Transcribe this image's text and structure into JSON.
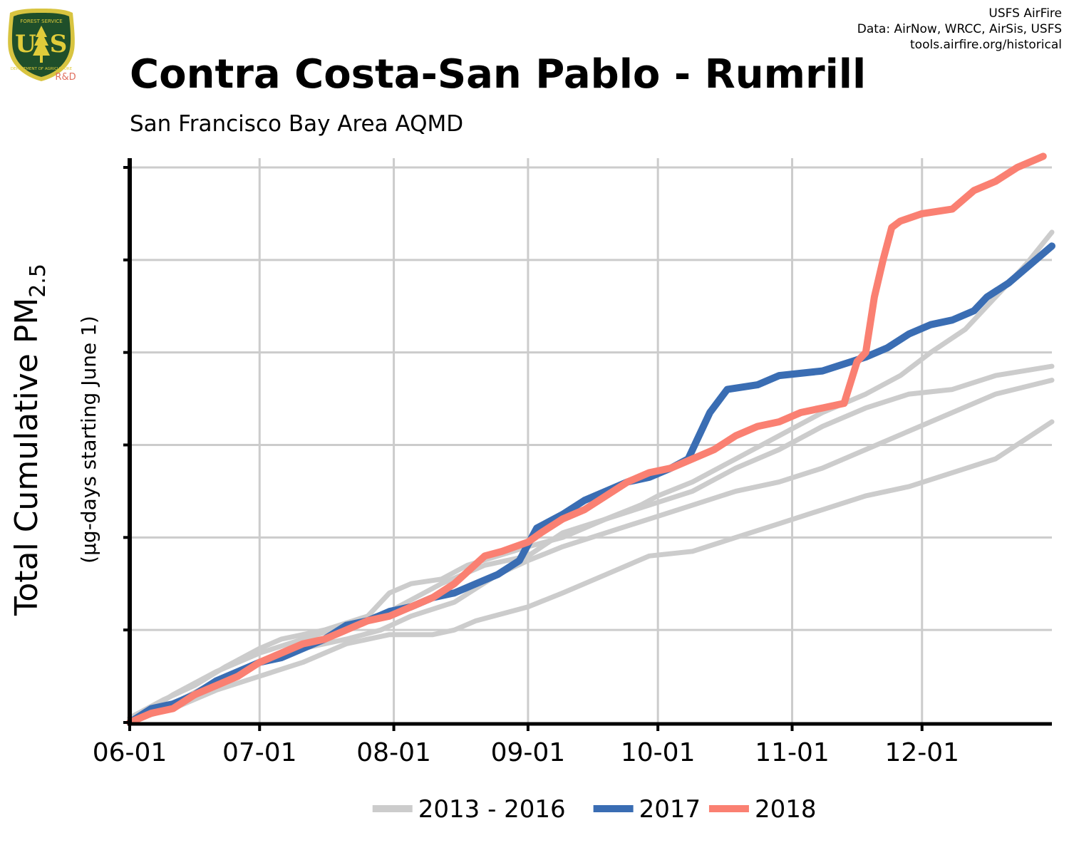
{
  "logo": {
    "top_text": "FOREST SERVICE",
    "letters": "US",
    "bottom_text": "DEPARTMENT OF AGRICULTURE",
    "tag": "R&D",
    "colors": {
      "shield": "#1f4f2a",
      "rim": "#d8c440",
      "letters": "#e0cc3a",
      "tag": "#e07060"
    }
  },
  "credits": {
    "line1": "USFS AirFire",
    "line2": "Data: AirNow, WRCC, AirSis, USFS",
    "line3": "tools.airfire.org/historical"
  },
  "title": "Contra Costa-San Pablo - Rumrill",
  "subtitle": "San Francisco Bay Area AQMD",
  "chart_data": {
    "type": "line",
    "title": "Contra Costa-San Pablo - Rumrill",
    "subtitle": "San Francisco Bay Area AQMD",
    "ylabel": "Total Cumulative PM",
    "ylabel_subscript": "2.5",
    "ylabel2": "(µg-days starting June 1)",
    "xlabel": "",
    "x_unit": "day of season (June 1 = 0)",
    "xlim": [
      0,
      213
    ],
    "ylim": [
      0,
      6.1
    ],
    "y_ticks": [
      0,
      1,
      2,
      3,
      4,
      5,
      6
    ],
    "y_tick_labels_shown": false,
    "x_ticks": [
      {
        "x": 0,
        "label": "06-01"
      },
      {
        "x": 30,
        "label": "07-01"
      },
      {
        "x": 61,
        "label": "08-01"
      },
      {
        "x": 92,
        "label": "09-01"
      },
      {
        "x": 122,
        "label": "10-01"
      },
      {
        "x": 153,
        "label": "11-01"
      },
      {
        "x": 183,
        "label": "12-01"
      }
    ],
    "grid": true,
    "legend_position": "bottom-center",
    "legend": [
      {
        "label": "2013 - 2016",
        "color": "#cccccc"
      },
      {
        "label": "2017",
        "color": "#3a6db3"
      },
      {
        "label": "2018",
        "color": "#fa8072"
      }
    ],
    "series": [
      {
        "group": "2013 - 2016",
        "color": "#cccccc",
        "points": [
          [
            0,
            0.05
          ],
          [
            8,
            0.25
          ],
          [
            15,
            0.4
          ],
          [
            22,
            0.6
          ],
          [
            30,
            0.8
          ],
          [
            35,
            0.9
          ],
          [
            45,
            1.0
          ],
          [
            55,
            1.15
          ],
          [
            60,
            1.4
          ],
          [
            65,
            1.5
          ],
          [
            72,
            1.55
          ],
          [
            78,
            1.7
          ],
          [
            85,
            1.8
          ],
          [
            92,
            1.9
          ],
          [
            100,
            2.0
          ],
          [
            110,
            2.2
          ],
          [
            118,
            2.35
          ],
          [
            122,
            2.45
          ],
          [
            130,
            2.6
          ],
          [
            140,
            2.85
          ],
          [
            150,
            3.1
          ],
          [
            160,
            3.35
          ],
          [
            170,
            3.55
          ],
          [
            178,
            3.75
          ],
          [
            185,
            4.0
          ],
          [
            193,
            4.25
          ],
          [
            200,
            4.6
          ],
          [
            207,
            4.95
          ],
          [
            213,
            5.3
          ]
        ]
      },
      {
        "group": "2013 - 2016",
        "color": "#cccccc",
        "points": [
          [
            0,
            0.02
          ],
          [
            10,
            0.15
          ],
          [
            20,
            0.35
          ],
          [
            30,
            0.5
          ],
          [
            40,
            0.65
          ],
          [
            50,
            0.85
          ],
          [
            60,
            0.95
          ],
          [
            70,
            0.95
          ],
          [
            75,
            1.0
          ],
          [
            80,
            1.1
          ],
          [
            92,
            1.25
          ],
          [
            100,
            1.4
          ],
          [
            110,
            1.6
          ],
          [
            120,
            1.8
          ],
          [
            130,
            1.85
          ],
          [
            140,
            2.0
          ],
          [
            150,
            2.15
          ],
          [
            160,
            2.3
          ],
          [
            170,
            2.45
          ],
          [
            180,
            2.55
          ],
          [
            190,
            2.7
          ],
          [
            200,
            2.85
          ],
          [
            213,
            3.25
          ]
        ]
      },
      {
        "group": "2013 - 2016",
        "color": "#cccccc",
        "points": [
          [
            0,
            0.0
          ],
          [
            10,
            0.2
          ],
          [
            20,
            0.45
          ],
          [
            30,
            0.65
          ],
          [
            40,
            0.8
          ],
          [
            50,
            0.9
          ],
          [
            58,
            1.0
          ],
          [
            65,
            1.15
          ],
          [
            75,
            1.3
          ],
          [
            85,
            1.6
          ],
          [
            92,
            1.75
          ],
          [
            100,
            1.9
          ],
          [
            110,
            2.05
          ],
          [
            120,
            2.2
          ],
          [
            130,
            2.35
          ],
          [
            140,
            2.5
          ],
          [
            150,
            2.6
          ],
          [
            160,
            2.75
          ],
          [
            170,
            2.95
          ],
          [
            180,
            3.15
          ],
          [
            190,
            3.35
          ],
          [
            200,
            3.55
          ],
          [
            213,
            3.7
          ]
        ]
      },
      {
        "group": "2013 - 2016",
        "color": "#cccccc",
        "points": [
          [
            0,
            0.0
          ],
          [
            10,
            0.3
          ],
          [
            20,
            0.55
          ],
          [
            30,
            0.75
          ],
          [
            40,
            0.9
          ],
          [
            50,
            1.05
          ],
          [
            60,
            1.2
          ],
          [
            72,
            1.5
          ],
          [
            82,
            1.7
          ],
          [
            92,
            1.8
          ],
          [
            100,
            2.05
          ],
          [
            110,
            2.2
          ],
          [
            120,
            2.35
          ],
          [
            130,
            2.5
          ],
          [
            140,
            2.75
          ],
          [
            150,
            2.95
          ],
          [
            160,
            3.2
          ],
          [
            170,
            3.4
          ],
          [
            180,
            3.55
          ],
          [
            190,
            3.6
          ],
          [
            200,
            3.75
          ],
          [
            213,
            3.85
          ]
        ]
      },
      {
        "group": "2017",
        "name": "2017",
        "color": "#3a6db3",
        "points": [
          [
            0,
            0.0
          ],
          [
            5,
            0.15
          ],
          [
            10,
            0.2
          ],
          [
            15,
            0.3
          ],
          [
            20,
            0.45
          ],
          [
            25,
            0.55
          ],
          [
            30,
            0.65
          ],
          [
            35,
            0.7
          ],
          [
            40,
            0.8
          ],
          [
            45,
            0.9
          ],
          [
            50,
            1.05
          ],
          [
            55,
            1.1
          ],
          [
            60,
            1.2
          ],
          [
            65,
            1.25
          ],
          [
            70,
            1.35
          ],
          [
            75,
            1.4
          ],
          [
            80,
            1.5
          ],
          [
            85,
            1.6
          ],
          [
            90,
            1.75
          ],
          [
            94,
            2.1
          ],
          [
            100,
            2.25
          ],
          [
            105,
            2.4
          ],
          [
            110,
            2.5
          ],
          [
            115,
            2.6
          ],
          [
            120,
            2.65
          ],
          [
            125,
            2.75
          ],
          [
            129,
            2.85
          ],
          [
            131,
            3.05
          ],
          [
            134,
            3.35
          ],
          [
            138,
            3.6
          ],
          [
            145,
            3.65
          ],
          [
            150,
            3.75
          ],
          [
            160,
            3.8
          ],
          [
            170,
            3.95
          ],
          [
            175,
            4.05
          ],
          [
            180,
            4.2
          ],
          [
            185,
            4.3
          ],
          [
            190,
            4.35
          ],
          [
            195,
            4.45
          ],
          [
            198,
            4.6
          ],
          [
            203,
            4.75
          ],
          [
            208,
            4.95
          ],
          [
            213,
            5.15
          ]
        ]
      },
      {
        "group": "2018",
        "name": "2018",
        "color": "#fa8072",
        "points": [
          [
            0,
            0.0
          ],
          [
            5,
            0.1
          ],
          [
            10,
            0.15
          ],
          [
            15,
            0.3
          ],
          [
            20,
            0.4
          ],
          [
            25,
            0.5
          ],
          [
            30,
            0.65
          ],
          [
            35,
            0.75
          ],
          [
            40,
            0.85
          ],
          [
            45,
            0.9
          ],
          [
            50,
            1.0
          ],
          [
            55,
            1.1
          ],
          [
            60,
            1.15
          ],
          [
            65,
            1.25
          ],
          [
            70,
            1.35
          ],
          [
            75,
            1.5
          ],
          [
            82,
            1.8
          ],
          [
            86,
            1.85
          ],
          [
            92,
            1.95
          ],
          [
            95,
            2.05
          ],
          [
            100,
            2.2
          ],
          [
            105,
            2.3
          ],
          [
            110,
            2.45
          ],
          [
            115,
            2.6
          ],
          [
            120,
            2.7
          ],
          [
            125,
            2.75
          ],
          [
            130,
            2.85
          ],
          [
            135,
            2.95
          ],
          [
            140,
            3.1
          ],
          [
            145,
            3.2
          ],
          [
            150,
            3.25
          ],
          [
            155,
            3.35
          ],
          [
            160,
            3.4
          ],
          [
            165,
            3.45
          ],
          [
            168,
            3.9
          ],
          [
            170,
            4.0
          ],
          [
            172,
            4.6
          ],
          [
            174,
            5.0
          ],
          [
            176,
            5.35
          ],
          [
            178,
            5.42
          ],
          [
            183,
            5.5
          ],
          [
            190,
            5.55
          ],
          [
            195,
            5.75
          ],
          [
            200,
            5.85
          ],
          [
            205,
            6.0
          ],
          [
            210,
            6.1
          ],
          [
            211,
            6.12
          ]
        ]
      }
    ]
  }
}
